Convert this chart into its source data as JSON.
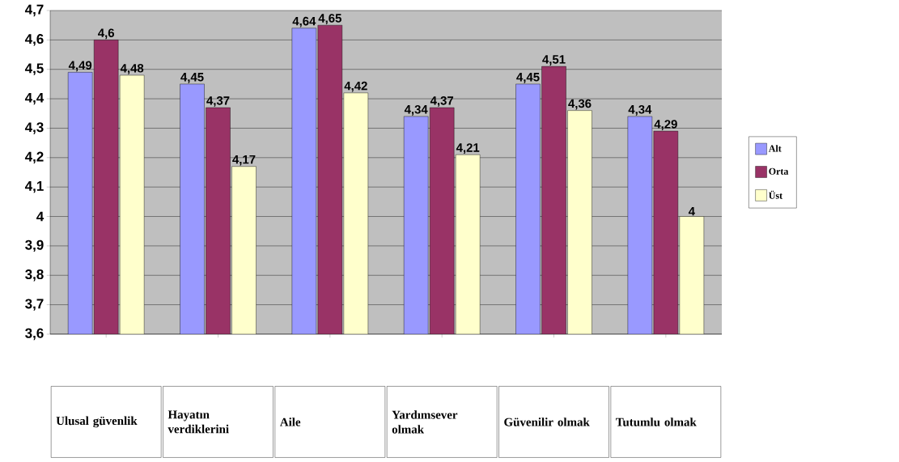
{
  "chart_data": {
    "type": "bar",
    "categories": [
      "Ulusal güvenlik",
      "Hayatın verdiklerini",
      "Aile",
      "Yardımsever olmak",
      "Güvenilir olmak",
      "Tutumlu olmak"
    ],
    "series": [
      {
        "name": "Alt",
        "color": "#9999ff",
        "values": [
          4.49,
          4.45,
          4.64,
          4.34,
          4.45,
          4.34
        ],
        "value_labels": [
          "4,49",
          "4,45",
          "4,64",
          "4,34",
          "4,45",
          "4,34"
        ]
      },
      {
        "name": "Orta",
        "color": "#993366",
        "values": [
          4.6,
          4.37,
          4.65,
          4.37,
          4.51,
          4.29
        ],
        "value_labels": [
          "4,6",
          "4,37",
          "4,65",
          "4,37",
          "4,51",
          "4,29"
        ]
      },
      {
        "name": "Üst",
        "color": "#ffffcc",
        "values": [
          4.48,
          4.17,
          4.42,
          4.21,
          4.36,
          4
        ],
        "value_labels": [
          "4,48",
          "4,17",
          "4,42",
          "4,21",
          "4,36",
          "4"
        ]
      }
    ],
    "ylim": [
      3.6,
      4.7
    ],
    "yticks": [
      {
        "value": 3.6,
        "label": "3,6"
      },
      {
        "value": 3.7,
        "label": "3,7"
      },
      {
        "value": 3.8,
        "label": "3,8"
      },
      {
        "value": 3.9,
        "label": "3,9"
      },
      {
        "value": 4,
        "label": "4"
      },
      {
        "value": 4.1,
        "label": "4,1"
      },
      {
        "value": 4.2,
        "label": "4,2"
      },
      {
        "value": 4.3,
        "label": "4,3"
      },
      {
        "value": 4.4,
        "label": "4,4"
      },
      {
        "value": 4.5,
        "label": "4,5"
      },
      {
        "value": 4.6,
        "label": "4,6"
      },
      {
        "value": 4.7,
        "label": "4,7"
      }
    ],
    "grid": "y",
    "legend": "right"
  }
}
